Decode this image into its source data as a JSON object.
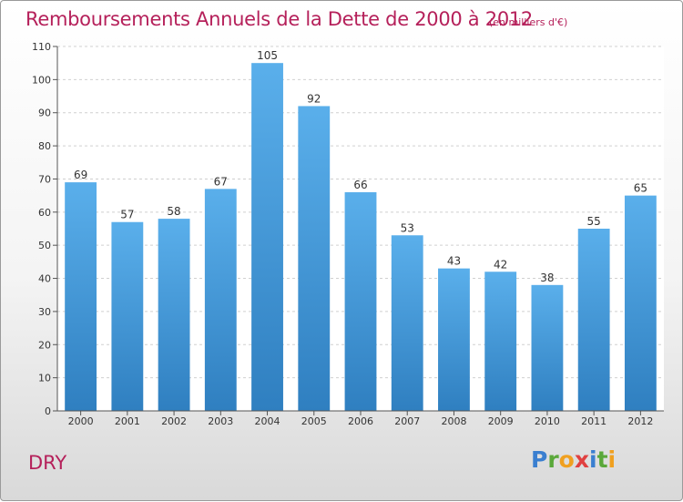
{
  "title": "Remboursements Annuels de la Dette de 2000 à 2012",
  "unit_note": "(en milliers d'€)",
  "commune": "DRY",
  "logo": {
    "letters": [
      {
        "ch": "P",
        "color": "#3a7fd0"
      },
      {
        "ch": "r",
        "color": "#5aa83a"
      },
      {
        "ch": "o",
        "color": "#f0a020"
      },
      {
        "ch": "x",
        "color": "#e04040"
      },
      {
        "ch": "i",
        "color": "#3a7fd0"
      },
      {
        "ch": "t",
        "color": "#5aa83a"
      },
      {
        "ch": "i",
        "color": "#f0a020"
      }
    ]
  },
  "chart_data": {
    "type": "bar",
    "categories": [
      "2000",
      "2001",
      "2002",
      "2003",
      "2004",
      "2005",
      "2006",
      "2007",
      "2008",
      "2009",
      "2010",
      "2011",
      "2012"
    ],
    "values": [
      69,
      57,
      58,
      67,
      105,
      92,
      66,
      53,
      43,
      42,
      38,
      55,
      65
    ],
    "title": "Remboursements Annuels de la Dette de 2000 à 2012",
    "xlabel": "",
    "ylabel": "",
    "ylim": [
      0,
      110
    ],
    "yticks": [
      0,
      10,
      20,
      30,
      40,
      50,
      60,
      70,
      80,
      90,
      100,
      110
    ],
    "grid": true,
    "bar_color_top": "#5aafeb",
    "bar_color_bottom": "#2f7fc0"
  }
}
